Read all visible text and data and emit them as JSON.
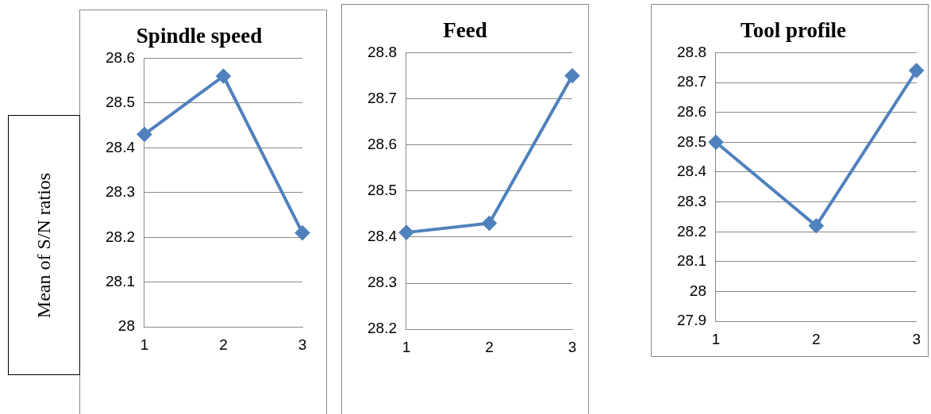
{
  "chart_data": [
    {
      "type": "line",
      "title": "Spindle speed",
      "ylabel": "Mean of S/N ratios",
      "categories": [
        "1",
        "2",
        "3"
      ],
      "values": [
        28.43,
        28.56,
        28.21
      ],
      "color": "#4f81bd",
      "ylim": [
        28,
        28.6
      ],
      "yticks": [
        28,
        28.1,
        28.2,
        28.3,
        28.4,
        28.5,
        28.6
      ],
      "grid": "y",
      "marker": "diamond"
    },
    {
      "type": "line",
      "title": "Feed",
      "categories": [
        "1",
        "2",
        "3"
      ],
      "values": [
        28.41,
        28.43,
        28.75
      ],
      "color": "#4f81bd",
      "ylim": [
        28.2,
        28.8
      ],
      "yticks": [
        28.2,
        28.3,
        28.4,
        28.5,
        28.6,
        28.7,
        28.8
      ],
      "grid": "y",
      "marker": "diamond"
    },
    {
      "type": "line",
      "title": "Tool profile",
      "categories": [
        "1",
        "2",
        "3"
      ],
      "values": [
        28.5,
        28.22,
        28.74
      ],
      "color": "#4f81bd",
      "ylim": [
        27.9,
        28.8
      ],
      "yticks": [
        27.9,
        28,
        28.1,
        28.2,
        28.3,
        28.4,
        28.5,
        28.6,
        28.7,
        28.8
      ],
      "grid": "y",
      "marker": "diamond"
    }
  ]
}
